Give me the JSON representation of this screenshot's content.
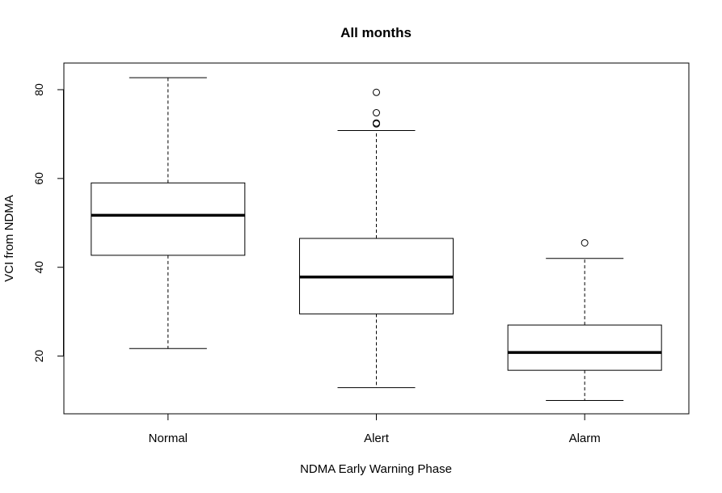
{
  "chart_data": {
    "type": "boxplot",
    "title": "All months",
    "xlabel": "NDMA Early Warning Phase",
    "ylabel": "VCI from NDMA",
    "ylim": [
      7,
      86
    ],
    "yticks": [
      20,
      40,
      60,
      80
    ],
    "grid": false,
    "categories": [
      "Normal",
      "Alert",
      "Alarm"
    ],
    "boxes": [
      {
        "category": "Normal",
        "whisker_low": 21.7,
        "q1": 42.7,
        "median": 51.7,
        "q3": 59.0,
        "whisker_high": 82.7,
        "outliers": []
      },
      {
        "category": "Alert",
        "whisker_low": 12.9,
        "q1": 29.5,
        "median": 37.8,
        "q3": 46.5,
        "whisker_high": 70.8,
        "outliers": [
          72.3,
          72.5,
          74.8,
          79.4
        ]
      },
      {
        "category": "Alarm",
        "whisker_low": 10.0,
        "q1": 16.8,
        "median": 20.8,
        "q3": 27.0,
        "whisker_high": 42.0,
        "outliers": [
          45.5
        ]
      }
    ]
  }
}
